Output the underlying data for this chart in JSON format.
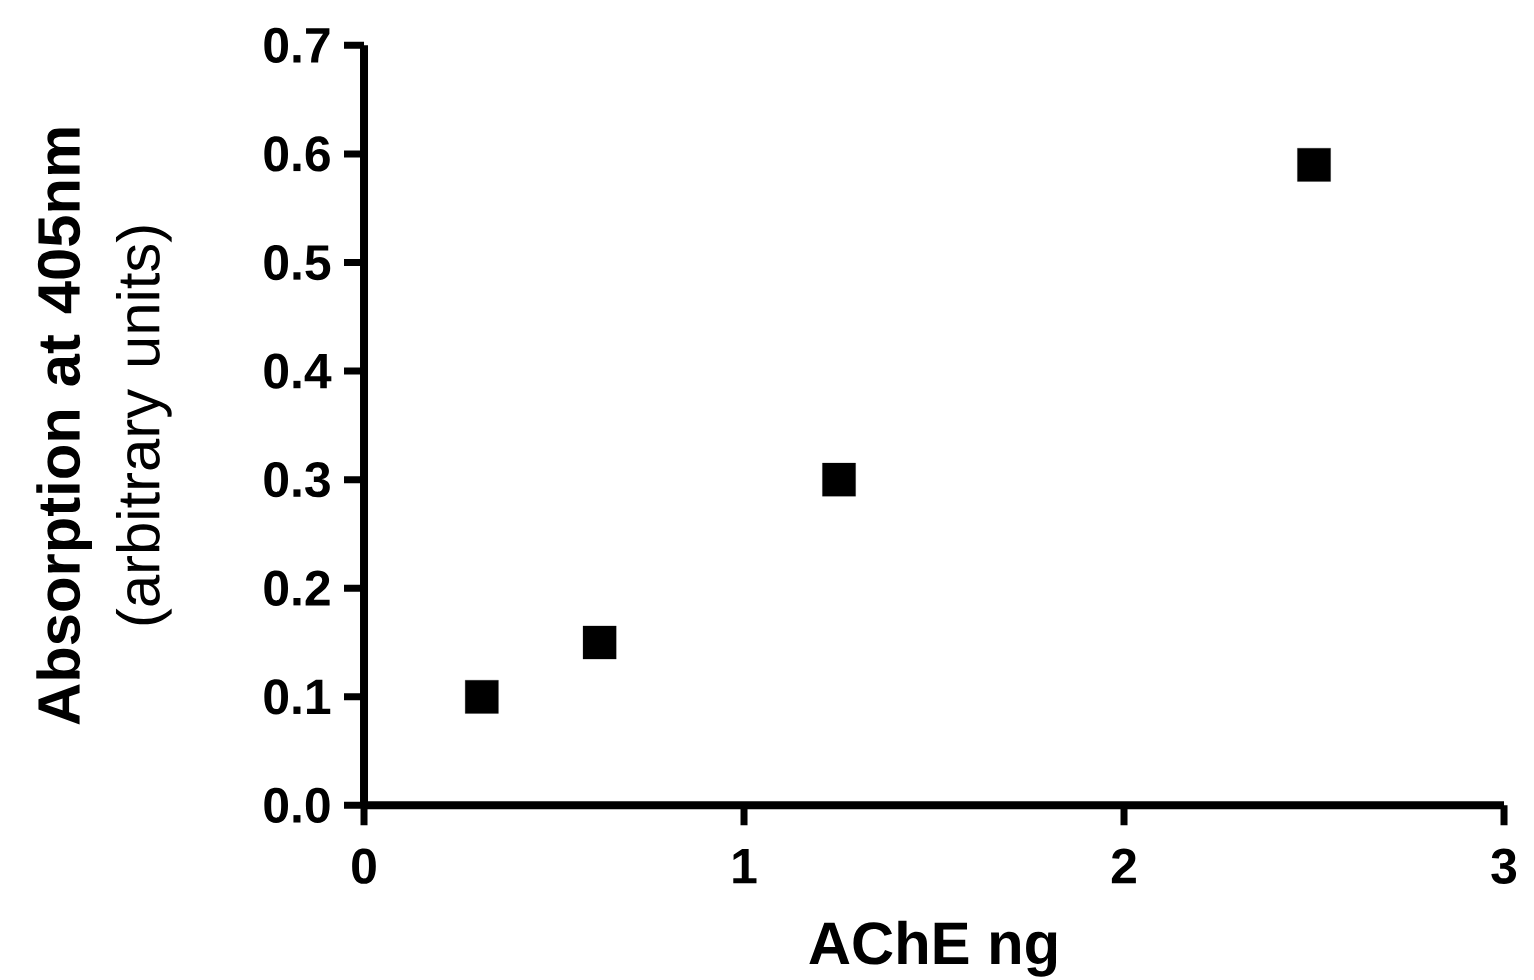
{
  "chart_data": {
    "type": "scatter",
    "xlabel": "AChE ng",
    "ylabel": "**Absorption at 405nm** (arbitrary units)",
    "x": [
      0.31,
      0.62,
      1.25,
      2.5
    ],
    "values": [
      0.1,
      0.15,
      0.3,
      0.59
    ],
    "color": "#000000",
    "marker": "square",
    "xlim": [
      0,
      3
    ],
    "ylim": [
      0,
      0.7
    ],
    "xticks": [
      0,
      1,
      2,
      3
    ],
    "yticks": [
      {
        "value": 0,
        "label": "0.0"
      },
      0.1,
      0.2,
      0.3,
      0.4,
      0.5,
      0.6,
      0.7
    ]
  }
}
